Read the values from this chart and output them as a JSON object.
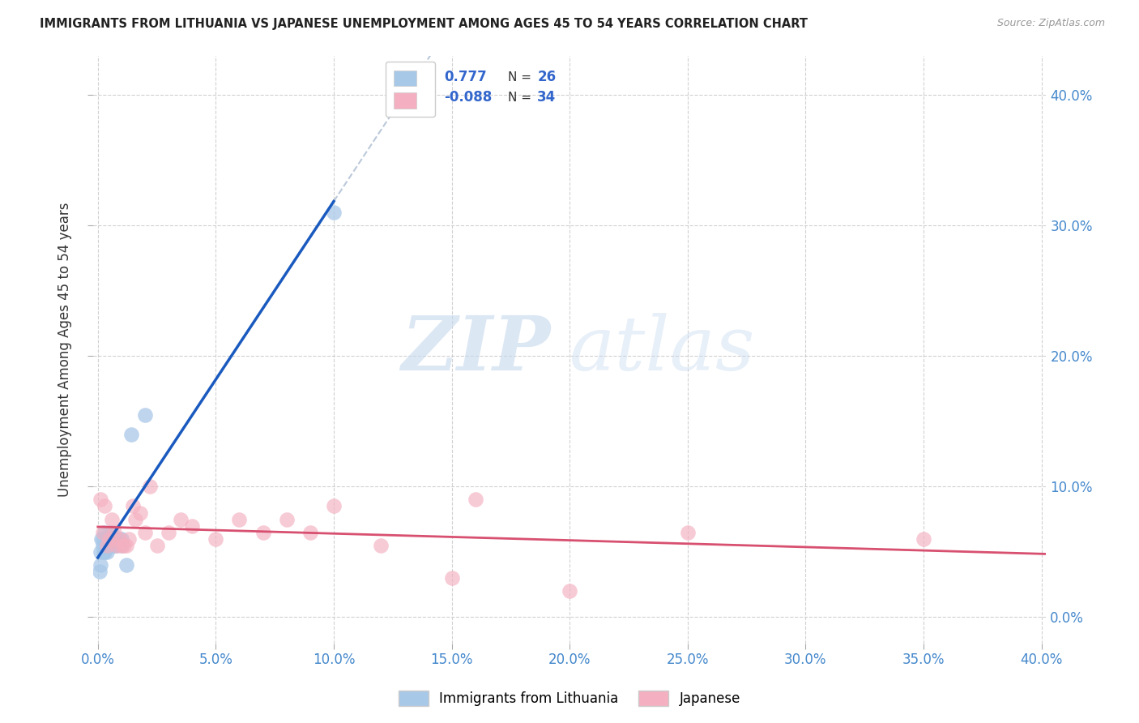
{
  "title": "IMMIGRANTS FROM LITHUANIA VS JAPANESE UNEMPLOYMENT AMONG AGES 45 TO 54 YEARS CORRELATION CHART",
  "source": "Source: ZipAtlas.com",
  "ylabel": "Unemployment Among Ages 45 to 54 years",
  "xlim": [
    -0.002,
    0.402
  ],
  "ylim": [
    -0.02,
    0.43
  ],
  "xticks": [
    0.0,
    0.05,
    0.1,
    0.15,
    0.2,
    0.25,
    0.3,
    0.35,
    0.4
  ],
  "yticks": [
    0.0,
    0.1,
    0.2,
    0.3,
    0.4
  ],
  "r_lithuania": 0.777,
  "n_lithuania": 26,
  "r_japanese": -0.088,
  "n_japanese": 34,
  "color_lithuania": "#a8c8e8",
  "color_japanese": "#f4b0c0",
  "line_color_lithuania": "#1a5abf",
  "line_color_japanese": "#d85070",
  "watermark_zip": "ZIP",
  "watermark_atlas": "atlas",
  "lithuania_x": [
    0.0008,
    0.001,
    0.0012,
    0.0015,
    0.002,
    0.002,
    0.0025,
    0.003,
    0.003,
    0.004,
    0.004,
    0.005,
    0.005,
    0.005,
    0.006,
    0.006,
    0.007,
    0.007,
    0.008,
    0.009,
    0.01,
    0.01,
    0.012,
    0.014,
    0.02,
    0.1
  ],
  "lithuania_y": [
    0.035,
    0.05,
    0.04,
    0.06,
    0.055,
    0.06,
    0.05,
    0.05,
    0.065,
    0.05,
    0.06,
    0.055,
    0.06,
    0.065,
    0.055,
    0.065,
    0.055,
    0.06,
    0.055,
    0.06,
    0.055,
    0.06,
    0.04,
    0.14,
    0.155,
    0.31
  ],
  "japanese_x": [
    0.001,
    0.002,
    0.003,
    0.004,
    0.005,
    0.006,
    0.007,
    0.008,
    0.009,
    0.01,
    0.011,
    0.012,
    0.013,
    0.015,
    0.016,
    0.018,
    0.02,
    0.022,
    0.025,
    0.03,
    0.035,
    0.04,
    0.05,
    0.06,
    0.07,
    0.08,
    0.09,
    0.1,
    0.12,
    0.15,
    0.16,
    0.2,
    0.25,
    0.35
  ],
  "japanese_y": [
    0.09,
    0.065,
    0.085,
    0.055,
    0.06,
    0.075,
    0.065,
    0.055,
    0.06,
    0.055,
    0.055,
    0.055,
    0.06,
    0.085,
    0.075,
    0.08,
    0.065,
    0.1,
    0.055,
    0.065,
    0.075,
    0.07,
    0.06,
    0.075,
    0.065,
    0.075,
    0.065,
    0.085,
    0.055,
    0.03,
    0.09,
    0.02,
    0.065,
    0.06
  ]
}
